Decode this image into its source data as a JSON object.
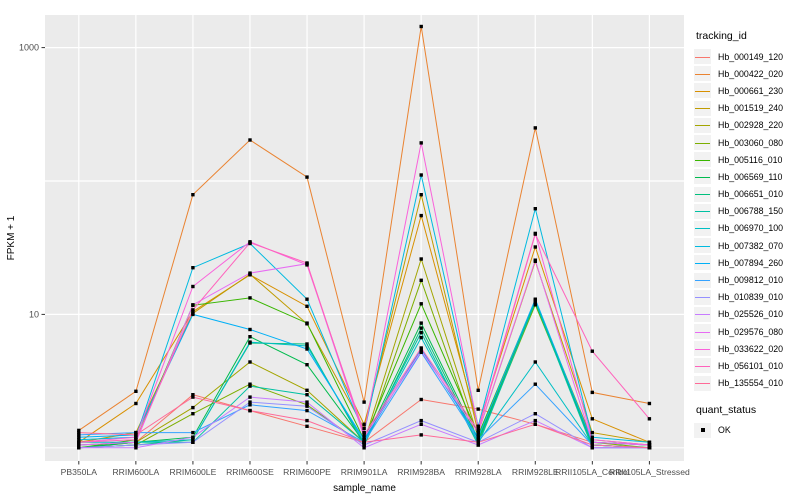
{
  "y_axis": {
    "title": "FPKM + 1"
  },
  "x_axis": {
    "title": "sample_name"
  },
  "legend": {
    "tracking_title": "tracking_id",
    "quant_title": "quant_status",
    "quant_label": "OK"
  },
  "colors": {
    "panel_bg": "#EBEBEB",
    "gridline": "#FFFFFF",
    "axis_text": "#4D4D4D",
    "axis_title": "#000000",
    "tick_mark": "#333333",
    "marker": "#000000",
    "legend_key_bg": "#F2F2F2"
  },
  "chart_data": {
    "type": "line",
    "title": "",
    "xlabel": "sample_name",
    "ylabel": "FPKM + 1",
    "y_scale": "log10",
    "ylim": [
      0.85,
      1800
    ],
    "y_ticks": [
      {
        "value": 1000,
        "label": "1000"
      },
      {
        "value": 10,
        "label": "10"
      }
    ],
    "y_gridlines": [
      1,
      10,
      100,
      1000
    ],
    "grid": true,
    "legend_position": "right",
    "marker_legend": {
      "title": "quant_status",
      "items": [
        {
          "label": "OK",
          "marker": "black-square"
        }
      ]
    },
    "categories": [
      "PB350LA",
      "RRIM600LA",
      "RRIM600LE",
      "RRIM600SE",
      "RRIM600PE",
      "RRIM901LA",
      "RRIM928BA",
      "RRIM928LA",
      "RRIM928LE",
      "RRII105LA_Control",
      "RRII105LA_Stressed"
    ],
    "series": [
      {
        "name": "Hb_000149_120",
        "color": "#F8766D",
        "values": [
          1.05,
          1.1,
          2.5,
          1.9,
          1.45,
          1.1,
          2.3,
          1.95,
          1.5,
          1.1,
          1.05
        ]
      },
      {
        "name": "Hb_000422_020",
        "color": "#EA8331",
        "values": [
          1.35,
          2.65,
          79,
          203,
          107,
          2.2,
          1440,
          2.7,
          250,
          2.6,
          2.15
        ]
      },
      {
        "name": "Hb_000661_230",
        "color": "#D89000",
        "values": [
          1.1,
          2.15,
          10.5,
          19.8,
          11.5,
          1.5,
          55,
          1.45,
          32,
          1.65,
          1.1
        ]
      },
      {
        "name": "Hb_001519_240",
        "color": "#C09B00",
        "values": [
          1.1,
          1.3,
          10.2,
          20,
          8.5,
          1.4,
          79,
          1.3,
          25,
          1.3,
          1.1
        ]
      },
      {
        "name": "Hb_002928_220",
        "color": "#A3A500",
        "values": [
          1.0,
          1.1,
          2.0,
          4.4,
          2.7,
          1.1,
          26,
          1.2,
          12.5,
          1.15,
          1.05
        ]
      },
      {
        "name": "Hb_003060_080",
        "color": "#7CAE00",
        "values": [
          1.0,
          1.05,
          1.8,
          3.0,
          2.1,
          1.05,
          18,
          1.1,
          11.8,
          1.1,
          1.0
        ]
      },
      {
        "name": "Hb_005116_010",
        "color": "#39B600",
        "values": [
          1.0,
          1.15,
          11.7,
          13.3,
          8.6,
          1.15,
          12,
          1.25,
          12.8,
          1.1,
          1.05
        ]
      },
      {
        "name": "Hb_006569_110",
        "color": "#00BB4E",
        "values": [
          1.0,
          1.1,
          1.2,
          6.8,
          4.2,
          1.1,
          8.6,
          1.15,
          12.2,
          1.05,
          1.0
        ]
      },
      {
        "name": "Hb_006651_010",
        "color": "#00BF7D",
        "values": [
          1.0,
          1.05,
          1.15,
          6.1,
          6.0,
          1.05,
          7.9,
          1.1,
          12.6,
          1.05,
          1.0
        ]
      },
      {
        "name": "Hb_006788_150",
        "color": "#00C1A3",
        "values": [
          1.05,
          1.1,
          1.1,
          2.9,
          2.5,
          1.1,
          7.3,
          1.05,
          12.4,
          1.0,
          1.0
        ]
      },
      {
        "name": "Hb_006970_100",
        "color": "#00BFC4",
        "values": [
          1.1,
          1.1,
          1.15,
          6.2,
          5.8,
          1.1,
          6.7,
          1.1,
          4.4,
          1.05,
          1.0
        ]
      },
      {
        "name": "Hb_007382_070",
        "color": "#00BAE0",
        "values": [
          1.15,
          1.2,
          22.4,
          34,
          13,
          1.3,
          111,
          1.45,
          62,
          1.2,
          1.1
        ]
      },
      {
        "name": "Hb_007894_260",
        "color": "#00B0F6",
        "values": [
          1.2,
          1.25,
          10.0,
          7.7,
          5.5,
          1.15,
          5.5,
          1.2,
          13.0,
          1.1,
          1.05
        ]
      },
      {
        "name": "Hb_009812_010",
        "color": "#35A2FF",
        "values": [
          1.25,
          1.3,
          1.3,
          2.1,
          1.9,
          1.1,
          5.2,
          1.15,
          3.0,
          1.05,
          1.0
        ]
      },
      {
        "name": "Hb_010839_010",
        "color": "#9590FF",
        "values": [
          1.0,
          1.05,
          1.1,
          2.2,
          2.05,
          1.05,
          1.6,
          1.1,
          1.8,
          1.0,
          1.0
        ]
      },
      {
        "name": "Hb_025526_010",
        "color": "#C77CFF",
        "values": [
          1.0,
          1.0,
          1.2,
          2.4,
          2.2,
          1.0,
          1.5,
          1.05,
          1.6,
          1.0,
          1.0
        ]
      },
      {
        "name": "Hb_029576_080",
        "color": "#E76BF3",
        "values": [
          1.05,
          1.1,
          11.8,
          20.4,
          24.0,
          1.2,
          5.3,
          1.3,
          25.5,
          1.1,
          1.05
        ]
      },
      {
        "name": "Hb_033622_020",
        "color": "#FA62DB",
        "values": [
          1.1,
          1.2,
          16.2,
          35,
          23.5,
          1.3,
          193,
          1.4,
          40.5,
          1.15,
          1.05
        ]
      },
      {
        "name": "Hb_056101_010",
        "color": "#FF62BC",
        "values": [
          1.1,
          1.15,
          10.8,
          34.5,
          24.3,
          1.25,
          5.6,
          1.35,
          40,
          5.3,
          1.65
        ]
      },
      {
        "name": "Hb_135554_010",
        "color": "#FF6A98",
        "values": [
          1.3,
          1.25,
          2.4,
          1.9,
          1.6,
          1.1,
          1.25,
          1.1,
          1.5,
          1.05,
          1.0
        ]
      }
    ]
  }
}
